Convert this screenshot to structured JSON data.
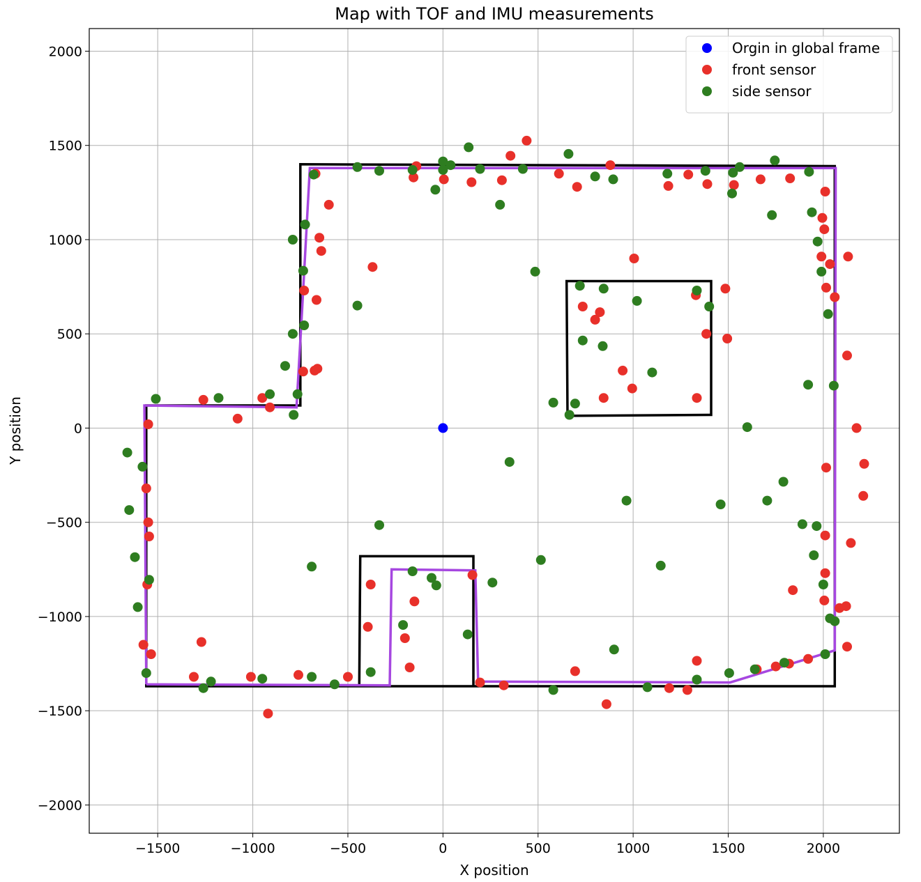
{
  "chart_data": {
    "type": "scatter",
    "title": "Map with TOF and IMU measurements",
    "xlabel": "X position",
    "ylabel": "Y position",
    "xlim": [
      -1860,
      2400
    ],
    "ylim": [
      -2150,
      2120
    ],
    "xticks": [
      -1500,
      -1000,
      -500,
      0,
      500,
      1000,
      1500,
      2000
    ],
    "yticks": [
      -2000,
      -1500,
      -1000,
      -500,
      0,
      500,
      1000,
      1500,
      2000
    ],
    "grid": true,
    "legend": "top-right",
    "colors": {
      "origin": "#0000ff",
      "front": "#e8302a",
      "side": "#2e7d20",
      "ground_truth": "#000000",
      "estimate": "#a647e0",
      "grid": "#b0b0b0"
    },
    "series": [
      {
        "name": "Orgin in global frame",
        "role": "origin",
        "points": [
          [
            0,
            0
          ]
        ]
      },
      {
        "name": "front sensor",
        "role": "front",
        "points": [
          [
            -1550,
            20
          ],
          [
            -1560,
            -320
          ],
          [
            -1550,
            -500
          ],
          [
            -1545,
            -575
          ],
          [
            -1555,
            -830
          ],
          [
            -1535,
            -1200
          ],
          [
            -1575,
            -1150
          ],
          [
            -1310,
            -1320
          ],
          [
            -1270,
            -1135
          ],
          [
            -1260,
            150
          ],
          [
            -1080,
            50
          ],
          [
            -950,
            160
          ],
          [
            -910,
            110
          ],
          [
            -1010,
            -1320
          ],
          [
            -920,
            -1515
          ],
          [
            -760,
            -1310
          ],
          [
            -500,
            -1320
          ],
          [
            -670,
            1350
          ],
          [
            -650,
            1010
          ],
          [
            -640,
            940
          ],
          [
            -600,
            1185
          ],
          [
            -665,
            680
          ],
          [
            -730,
            730
          ],
          [
            -735,
            300
          ],
          [
            -675,
            305
          ],
          [
            -660,
            315
          ],
          [
            -370,
            855
          ],
          [
            -380,
            -830
          ],
          [
            -395,
            -1055
          ],
          [
            -200,
            -1115
          ],
          [
            -175,
            -1270
          ],
          [
            -150,
            -920
          ],
          [
            -155,
            1330
          ],
          [
            -140,
            1390
          ],
          [
            5,
            1320
          ],
          [
            150,
            1305
          ],
          [
            310,
            1315
          ],
          [
            355,
            1445
          ],
          [
            440,
            1525
          ],
          [
            610,
            1350
          ],
          [
            705,
            1280
          ],
          [
            735,
            645
          ],
          [
            800,
            575
          ],
          [
            825,
            615
          ],
          [
            880,
            1395
          ],
          [
            845,
            160
          ],
          [
            945,
            305
          ],
          [
            995,
            210
          ],
          [
            1005,
            900
          ],
          [
            1185,
            1285
          ],
          [
            1290,
            1345
          ],
          [
            1390,
            1295
          ],
          [
            1530,
            1290
          ],
          [
            1670,
            1320
          ],
          [
            1825,
            1325
          ],
          [
            1330,
            705
          ],
          [
            1385,
            500
          ],
          [
            1335,
            160
          ],
          [
            1485,
            740
          ],
          [
            1495,
            475
          ],
          [
            2010,
            1255
          ],
          [
            1995,
            1115
          ],
          [
            2005,
            1055
          ],
          [
            1990,
            910
          ],
          [
            2035,
            870
          ],
          [
            2015,
            745
          ],
          [
            2060,
            695
          ],
          [
            2130,
            910
          ],
          [
            2125,
            385
          ],
          [
            2175,
            0
          ],
          [
            2215,
            -190
          ],
          [
            2210,
            -360
          ],
          [
            2145,
            -610
          ],
          [
            2015,
            -210
          ],
          [
            2010,
            -570
          ],
          [
            2010,
            -770
          ],
          [
            2005,
            -915
          ],
          [
            2085,
            -955
          ],
          [
            2120,
            -945
          ],
          [
            2125,
            -1160
          ],
          [
            1840,
            -860
          ],
          [
            1920,
            -1225
          ],
          [
            1820,
            -1250
          ],
          [
            1750,
            -1265
          ],
          [
            1650,
            -1280
          ],
          [
            1335,
            -1235
          ],
          [
            1285,
            -1390
          ],
          [
            1190,
            -1380
          ],
          [
            860,
            -1465
          ],
          [
            695,
            -1290
          ],
          [
            320,
            -1365
          ],
          [
            195,
            -1350
          ],
          [
            155,
            -780
          ]
        ]
      },
      {
        "name": "side sensor",
        "role": "side",
        "points": [
          [
            -1660,
            -130
          ],
          [
            -1650,
            -435
          ],
          [
            -1620,
            -685
          ],
          [
            -1605,
            -950
          ],
          [
            -1580,
            -205
          ],
          [
            -1545,
            -805
          ],
          [
            -1560,
            -1300
          ],
          [
            -1510,
            155
          ],
          [
            -1260,
            -1380
          ],
          [
            -1220,
            -1345
          ],
          [
            -1180,
            160
          ],
          [
            -950,
            -1330
          ],
          [
            -910,
            180
          ],
          [
            -830,
            330
          ],
          [
            -790,
            500
          ],
          [
            -790,
            1000
          ],
          [
            -785,
            70
          ],
          [
            -765,
            180
          ],
          [
            -735,
            835
          ],
          [
            -730,
            545
          ],
          [
            -725,
            1080
          ],
          [
            -690,
            -735
          ],
          [
            -690,
            -1320
          ],
          [
            -680,
            1345
          ],
          [
            -570,
            -1360
          ],
          [
            -450,
            1385
          ],
          [
            -450,
            650
          ],
          [
            -380,
            -1295
          ],
          [
            -335,
            1365
          ],
          [
            -335,
            -515
          ],
          [
            -210,
            -1045
          ],
          [
            -160,
            -760
          ],
          [
            -160,
            1370
          ],
          [
            -60,
            -795
          ],
          [
            -40,
            1265
          ],
          [
            -35,
            -835
          ],
          [
            0,
            1415
          ],
          [
            0,
            1370
          ],
          [
            40,
            1395
          ],
          [
            130,
            -1095
          ],
          [
            135,
            1490
          ],
          [
            195,
            1375
          ],
          [
            260,
            -820
          ],
          [
            300,
            1185
          ],
          [
            350,
            -180
          ],
          [
            420,
            1375
          ],
          [
            485,
            830
          ],
          [
            515,
            -700
          ],
          [
            580,
            -1390
          ],
          [
            580,
            135
          ],
          [
            660,
            1455
          ],
          [
            665,
            70
          ],
          [
            695,
            130
          ],
          [
            720,
            755
          ],
          [
            735,
            465
          ],
          [
            800,
            1335
          ],
          [
            845,
            740
          ],
          [
            840,
            435
          ],
          [
            895,
            1320
          ],
          [
            900,
            -1175
          ],
          [
            965,
            -385
          ],
          [
            1020,
            675
          ],
          [
            1075,
            -1375
          ],
          [
            1100,
            295
          ],
          [
            1145,
            -730
          ],
          [
            1180,
            1350
          ],
          [
            1335,
            730
          ],
          [
            1335,
            -1335
          ],
          [
            1380,
            1365
          ],
          [
            1400,
            645
          ],
          [
            1460,
            -405
          ],
          [
            1505,
            -1300
          ],
          [
            1520,
            1245
          ],
          [
            1525,
            1355
          ],
          [
            1560,
            1385
          ],
          [
            1600,
            5
          ],
          [
            1640,
            -1280
          ],
          [
            1705,
            -385
          ],
          [
            1730,
            1130
          ],
          [
            1745,
            1420
          ],
          [
            1790,
            -285
          ],
          [
            1795,
            -1245
          ],
          [
            1890,
            -510
          ],
          [
            1920,
            230
          ],
          [
            1925,
            1360
          ],
          [
            1940,
            1145
          ],
          [
            1950,
            -675
          ],
          [
            1965,
            -520
          ],
          [
            1970,
            990
          ],
          [
            1990,
            830
          ],
          [
            2000,
            -830
          ],
          [
            2010,
            -1200
          ],
          [
            2025,
            605
          ],
          [
            2035,
            -1010
          ],
          [
            2055,
            225
          ],
          [
            2060,
            -1025
          ]
        ]
      },
      {
        "role": "ground_truth",
        "closed": true,
        "points": [
          [
            -1560,
            -1370
          ],
          [
            -1560,
            120
          ],
          [
            -750,
            120
          ],
          [
            -750,
            1400
          ],
          [
            2060,
            1390
          ],
          [
            2060,
            -1370
          ]
        ]
      },
      {
        "role": "ground_truth",
        "closed": true,
        "points": [
          [
            650,
            780
          ],
          [
            1410,
            780
          ],
          [
            1410,
            70
          ],
          [
            655,
            65
          ]
        ]
      },
      {
        "role": "ground_truth",
        "closed": false,
        "points": [
          [
            -440,
            -1370
          ],
          [
            -435,
            -680
          ],
          [
            160,
            -680
          ],
          [
            160,
            -1370
          ]
        ]
      },
      {
        "role": "estimate",
        "closed": false,
        "points": [
          [
            -1560,
            -1360
          ],
          [
            -1570,
            120
          ],
          [
            -770,
            110
          ],
          [
            -740,
            640
          ],
          [
            -700,
            1380
          ],
          [
            2065,
            1380
          ],
          [
            2060,
            -1180
          ],
          [
            1510,
            -1350
          ],
          [
            185,
            -1345
          ],
          [
            170,
            -755
          ],
          [
            -270,
            -750
          ],
          [
            -280,
            -1365
          ],
          [
            -1560,
            -1360
          ]
        ]
      }
    ]
  }
}
